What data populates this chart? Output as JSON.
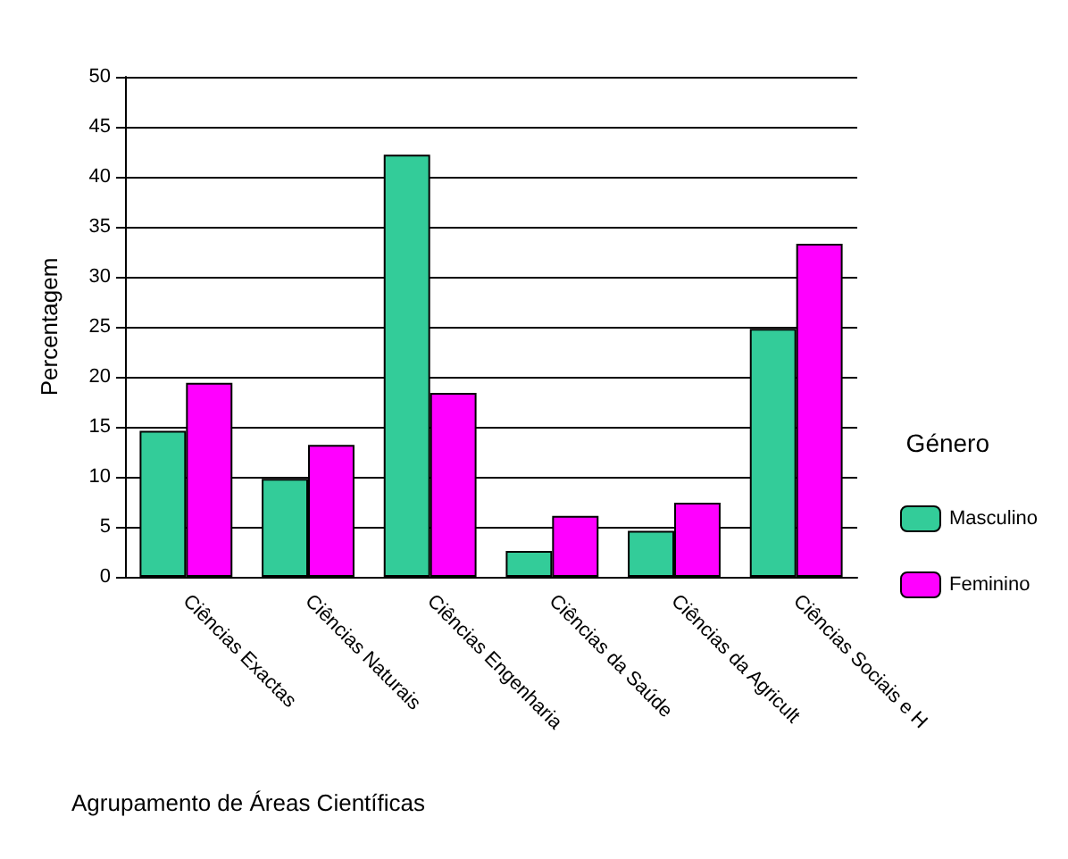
{
  "chart_data": {
    "type": "bar",
    "xlabel": "Agrupamento de Áreas Científicas",
    "ylabel": "Percentagem",
    "legend_title": "Género",
    "categories": [
      "Ciências Exactas",
      "Ciências Naturais",
      "Ciências Engenharia",
      "Ciências da Saúde",
      "Ciências da Agricult",
      "Ciências Sociais e H"
    ],
    "series": [
      {
        "name": "Masculino",
        "color": "#33cc99",
        "values": [
          14.6,
          9.8,
          42.2,
          2.6,
          4.6,
          24.8
        ]
      },
      {
        "name": "Feminino",
        "color": "#ff00ff",
        "values": [
          19.4,
          13.2,
          18.4,
          6.1,
          7.4,
          33.3
        ]
      }
    ],
    "ylim": [
      0,
      50
    ],
    "yticks": [
      0,
      5,
      10,
      15,
      20,
      25,
      30,
      35,
      40,
      45,
      50
    ],
    "grid": "y",
    "legend": "right"
  }
}
